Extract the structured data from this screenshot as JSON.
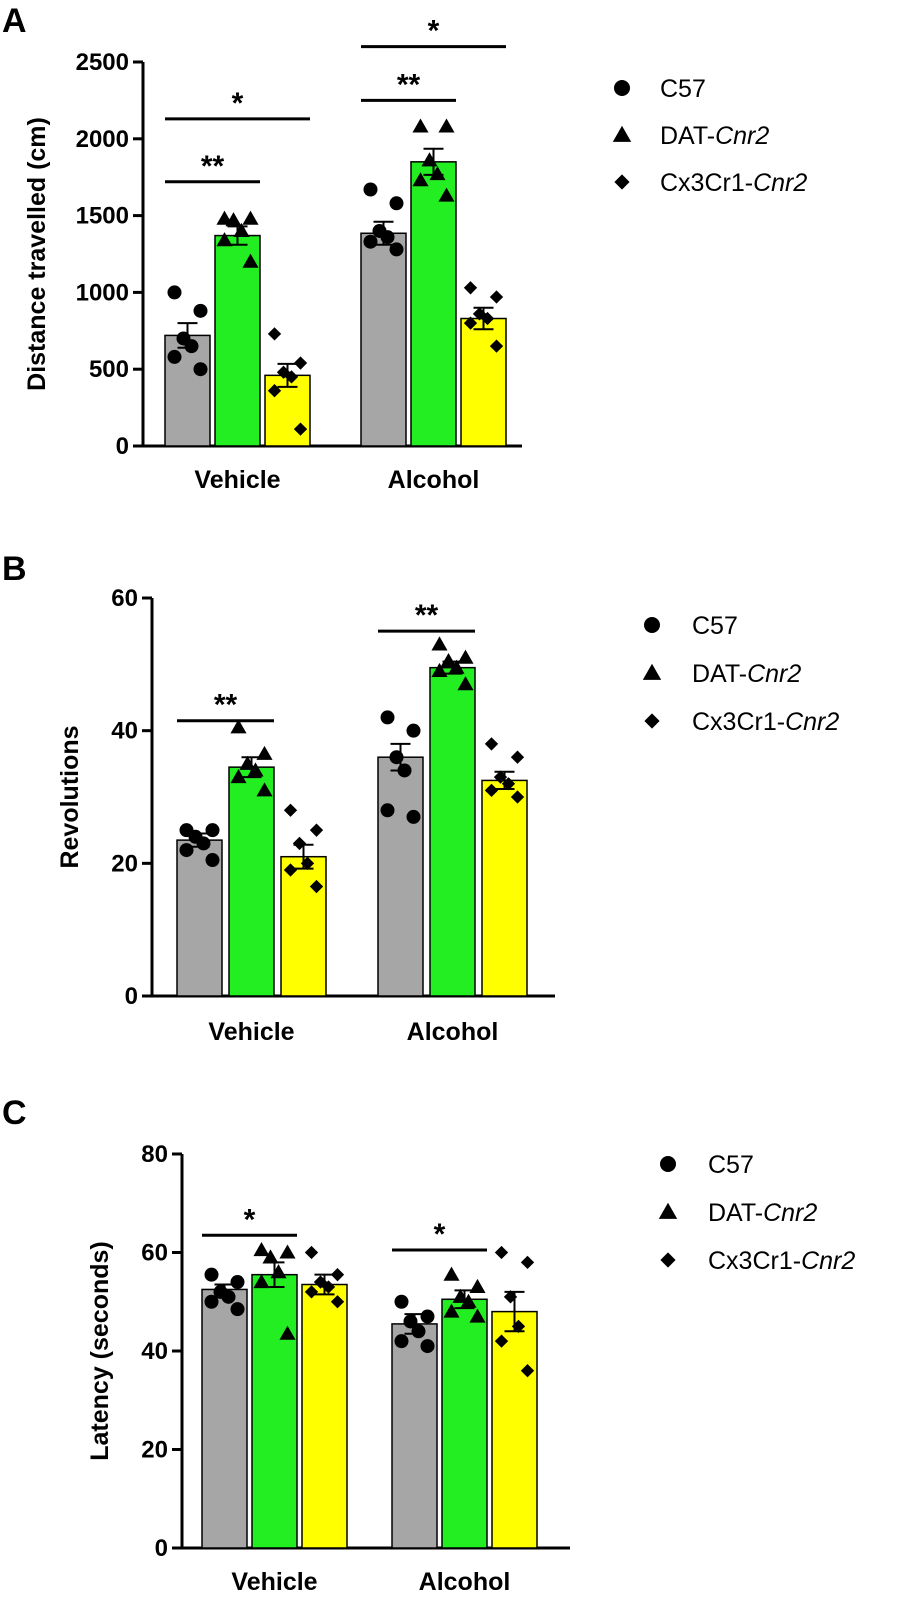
{
  "chart_data": [
    {
      "panel": "A",
      "type": "bar",
      "ylabel": "Distance travelled (cm)",
      "ylim": [
        0,
        2500
      ],
      "yticks": [
        "0",
        "500",
        "1000",
        "1500",
        "2000",
        "2500"
      ],
      "categories": [
        "Vehicle",
        "Alcohol"
      ],
      "series": [
        {
          "name": "C57",
          "legend": {
            "main": "C57",
            "ital": ""
          },
          "color": "#a6a6a6",
          "marker": "circle",
          "values": [
            720,
            1385
          ],
          "sem": [
            80,
            75
          ],
          "points": [
            [
              1000,
              880,
              700,
              650,
              580,
              500
            ],
            [
              1670,
              1580,
              1400,
              1360,
              1330,
              1280
            ]
          ]
        },
        {
          "name": "DAT-Cnr2",
          "legend": {
            "main": "DAT-",
            "ital": "Cnr2"
          },
          "color": "#22ee22",
          "marker": "triangle",
          "values": [
            1370,
            1850
          ],
          "sem": [
            60,
            85
          ],
          "points": [
            [
              1480,
              1480,
              1470,
              1400,
              1340,
              1200
            ],
            [
              2080,
              2080,
              1860,
              1770,
              1730,
              1630
            ]
          ]
        },
        {
          "name": "Cx3Cr1-Cnr2",
          "legend": {
            "main": "Cx3Cr1-",
            "ital": "Cnr2"
          },
          "color": "#ffff00",
          "marker": "diamond",
          "values": [
            460,
            830
          ],
          "sem": [
            75,
            70
          ],
          "points": [
            [
              730,
              540,
              480,
              450,
              360,
              110
            ],
            [
              1030,
              970,
              860,
              830,
              800,
              650
            ]
          ]
        }
      ],
      "significance": [
        {
          "group": 0,
          "from": 0,
          "to": 1,
          "label": "**",
          "y": 1720
        },
        {
          "group": 0,
          "from": 0,
          "to": 2,
          "label": "*",
          "y": 2130
        },
        {
          "group": 1,
          "from": 0,
          "to": 1,
          "label": "**",
          "y": 2250
        },
        {
          "group": 1,
          "from": 0,
          "to": 2,
          "label": "*",
          "y": 2600
        }
      ]
    },
    {
      "panel": "B",
      "type": "bar",
      "ylabel": "Revolutions",
      "ylim": [
        0,
        60
      ],
      "yticks": [
        "0",
        "20",
        "40",
        "60"
      ],
      "categories": [
        "Vehicle",
        "Alcohol"
      ],
      "series": [
        {
          "name": "C57",
          "legend": {
            "main": "C57",
            "ital": ""
          },
          "color": "#a6a6a6",
          "marker": "circle",
          "values": [
            23.5,
            36
          ],
          "sem": [
            1,
            2
          ],
          "points": [
            [
              25,
              25,
              24,
              23,
              22,
              20.5
            ],
            [
              42,
              40,
              36,
              34,
              28,
              27
            ]
          ]
        },
        {
          "name": "DAT-Cnr2",
          "legend": {
            "main": "DAT-",
            "ital": "Cnr2"
          },
          "color": "#22ee22",
          "marker": "triangle",
          "values": [
            34.5,
            49.5
          ],
          "sem": [
            1.5,
            0.9
          ],
          "points": [
            [
              40.5,
              36.5,
              35,
              34,
              33,
              31
            ],
            [
              53,
              51,
              50.5,
              49.5,
              49,
              47
            ]
          ]
        },
        {
          "name": "Cx3Cr1-Cnr2",
          "legend": {
            "main": "Cx3Cr1-",
            "ital": "Cnr2"
          },
          "color": "#ffff00",
          "marker": "diamond",
          "values": [
            21,
            32.5
          ],
          "sem": [
            1.8,
            1.3
          ],
          "points": [
            [
              28,
              25,
              23,
              20,
              19,
              16.5
            ],
            [
              38,
              36,
              33,
              32,
              31,
              30
            ]
          ]
        }
      ],
      "significance": [
        {
          "group": 0,
          "from": 0,
          "to": 1,
          "label": "**",
          "y": 41.5
        },
        {
          "group": 1,
          "from": 0,
          "to": 1,
          "label": "**",
          "y": 55
        }
      ]
    },
    {
      "panel": "C",
      "type": "bar",
      "ylabel": "Latency (seconds)",
      "ylim": [
        0,
        80
      ],
      "yticks": [
        "0",
        "20",
        "40",
        "60",
        "80"
      ],
      "categories": [
        "Vehicle",
        "Alcohol"
      ],
      "series": [
        {
          "name": "C57",
          "legend": {
            "main": "C57",
            "ital": ""
          },
          "color": "#a6a6a6",
          "marker": "circle",
          "values": [
            52.5,
            45.5
          ],
          "sem": [
            1,
            2
          ],
          "points": [
            [
              55.5,
              54,
              52,
              51,
              50,
              48.5
            ],
            [
              50,
              47,
              46,
              44,
              42,
              41
            ]
          ]
        },
        {
          "name": "DAT-Cnr2",
          "legend": {
            "main": "DAT-",
            "ital": "Cnr2"
          },
          "color": "#22ee22",
          "marker": "triangle",
          "values": [
            55.5,
            50.5
          ],
          "sem": [
            2.5,
            1.8
          ],
          "points": [
            [
              60.5,
              60,
              59,
              56,
              54,
              43.5
            ],
            [
              55.5,
              53,
              51,
              50,
              48,
              47
            ]
          ]
        },
        {
          "name": "Cx3Cr1-Cnr2",
          "legend": {
            "main": "Cx3Cr1-",
            "ital": "Cnr2"
          },
          "color": "#ffff00",
          "marker": "diamond",
          "values": [
            53.5,
            48
          ],
          "sem": [
            2,
            4
          ],
          "points": [
            [
              60,
              55.5,
              54,
              53,
              52,
              50
            ],
            [
              60,
              58,
              51,
              45,
              42,
              36
            ]
          ]
        }
      ],
      "significance": [
        {
          "group": 0,
          "from": 0,
          "to": 1,
          "label": "*",
          "y": 63.5
        },
        {
          "group": 1,
          "from": 0,
          "to": 1,
          "label": "*",
          "y": 60.5
        }
      ]
    }
  ]
}
